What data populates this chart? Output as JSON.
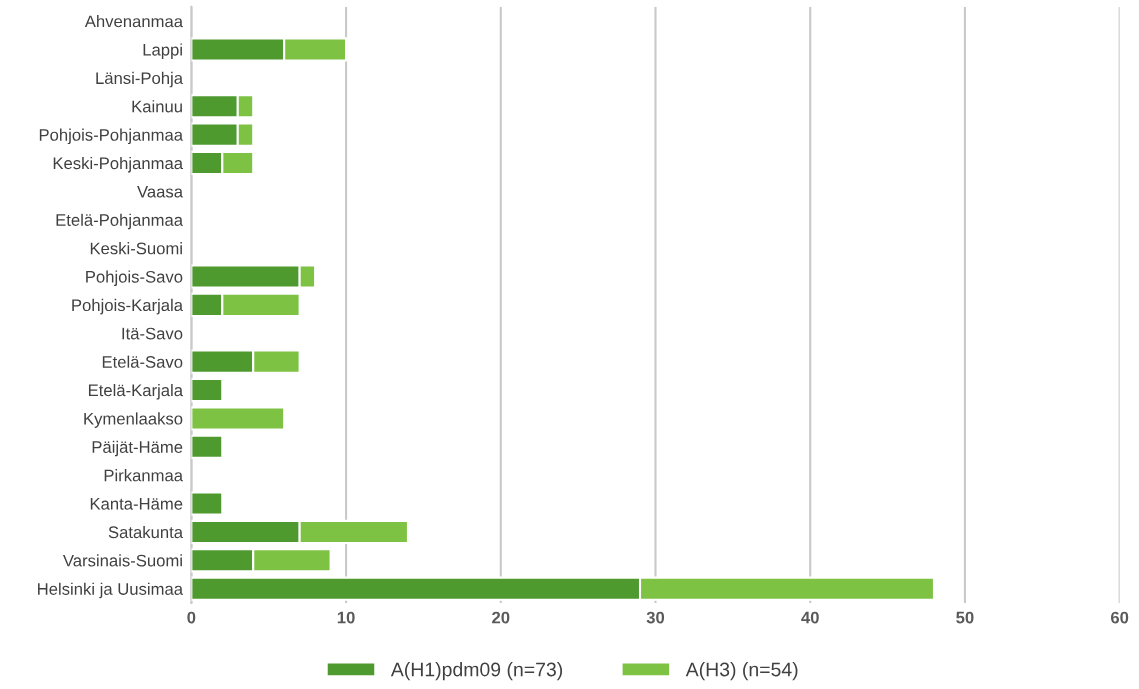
{
  "chart_data": {
    "type": "bar",
    "orientation": "horizontal",
    "stacked": true,
    "categories": [
      "Ahvenanmaa",
      "Lappi",
      "Länsi-Pohja",
      "Kainuu",
      "Pohjois-Pohjanmaa",
      "Keski-Pohjanmaa",
      "Vaasa",
      "Etelä-Pohjanmaa",
      "Keski-Suomi",
      "Pohjois-Savo",
      "Pohjois-Karjala",
      "Itä-Savo",
      "Etelä-Savo",
      "Etelä-Karjala",
      "Kymenlaakso",
      "Päijät-Häme",
      "Pirkanmaa",
      "Kanta-Häme",
      "Satakunta",
      "Varsinais-Suomi",
      "Helsinki ja Uusimaa"
    ],
    "series": [
      {
        "name": "A(H1)pdm09 (n=73)",
        "color": "#4e9a2f",
        "values": [
          null,
          6,
          null,
          3,
          3,
          2,
          null,
          null,
          null,
          7,
          2,
          null,
          4,
          2,
          null,
          2,
          null,
          2,
          7,
          4,
          29
        ]
      },
      {
        "name": "A(H3) (n=54)",
        "color": "#7dc242",
        "values": [
          null,
          4,
          null,
          1,
          1,
          2,
          null,
          null,
          null,
          1,
          5,
          null,
          3,
          null,
          6,
          null,
          null,
          null,
          7,
          5,
          19
        ]
      }
    ],
    "xlim": [
      0,
      60
    ],
    "xticks": [
      0,
      10,
      20,
      30,
      40,
      50,
      60
    ],
    "grid": "x",
    "legend": "bottom"
  }
}
